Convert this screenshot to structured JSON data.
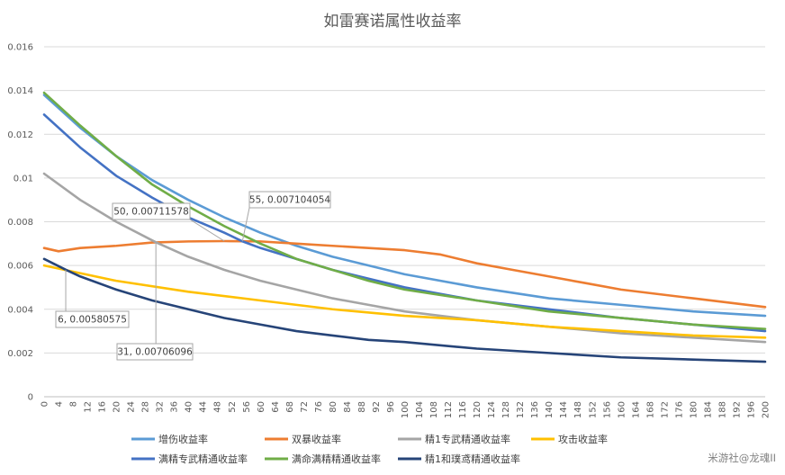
{
  "chart_data": {
    "type": "line",
    "title": "如雷赛诺属性收益率",
    "xlabel": "",
    "ylabel": "",
    "xlim": [
      0,
      200
    ],
    "ylim": [
      0,
      0.016
    ],
    "yticks": [
      "0",
      "0.002",
      "0.004",
      "0.006",
      "0.008",
      "0.01",
      "0.012",
      "0.014",
      "0.016"
    ],
    "xtick_step": 4,
    "grid": true,
    "legend_position": "bottom",
    "series": [
      {
        "name": "增伤收益率",
        "color": "#5B9BD5",
        "points": [
          [
            0,
            0.0138
          ],
          [
            10,
            0.0123
          ],
          [
            20,
            0.011
          ],
          [
            30,
            0.0099
          ],
          [
            40,
            0.009
          ],
          [
            50,
            0.0082
          ],
          [
            60,
            0.0075
          ],
          [
            70,
            0.0069
          ],
          [
            80,
            0.0064
          ],
          [
            90,
            0.006
          ],
          [
            100,
            0.0056
          ],
          [
            120,
            0.005
          ],
          [
            140,
            0.0045
          ],
          [
            160,
            0.0042
          ],
          [
            180,
            0.0039
          ],
          [
            200,
            0.0037
          ]
        ]
      },
      {
        "name": "双暴收益率",
        "color": "#ED7D31",
        "points": [
          [
            0,
            0.0068
          ],
          [
            4,
            0.00665
          ],
          [
            10,
            0.0068
          ],
          [
            20,
            0.0069
          ],
          [
            30,
            0.00705
          ],
          [
            40,
            0.0071
          ],
          [
            50,
            0.00711578
          ],
          [
            60,
            0.0071
          ],
          [
            70,
            0.007
          ],
          [
            80,
            0.0069
          ],
          [
            90,
            0.0068
          ],
          [
            100,
            0.0067
          ],
          [
            110,
            0.0065
          ],
          [
            120,
            0.0061
          ],
          [
            130,
            0.0058
          ],
          [
            140,
            0.0055
          ],
          [
            150,
            0.0052
          ],
          [
            160,
            0.0049
          ],
          [
            170,
            0.0047
          ],
          [
            180,
            0.0045
          ],
          [
            190,
            0.0043
          ],
          [
            200,
            0.0041
          ]
        ]
      },
      {
        "name": "精1专武精通收益率",
        "color": "#A5A5A5",
        "points": [
          [
            0,
            0.0102
          ],
          [
            10,
            0.009
          ],
          [
            20,
            0.008
          ],
          [
            31,
            0.00706096
          ],
          [
            40,
            0.0064
          ],
          [
            50,
            0.0058
          ],
          [
            60,
            0.0053
          ],
          [
            70,
            0.0049
          ],
          [
            80,
            0.0045
          ],
          [
            90,
            0.0042
          ],
          [
            100,
            0.0039
          ],
          [
            120,
            0.0035
          ],
          [
            140,
            0.0032
          ],
          [
            160,
            0.0029
          ],
          [
            180,
            0.0027
          ],
          [
            200,
            0.0025
          ]
        ]
      },
      {
        "name": "攻击收益率",
        "color": "#FFC000",
        "points": [
          [
            0,
            0.006
          ],
          [
            20,
            0.0053
          ],
          [
            40,
            0.0048
          ],
          [
            60,
            0.0044
          ],
          [
            80,
            0.004
          ],
          [
            100,
            0.0037
          ],
          [
            120,
            0.0035
          ],
          [
            140,
            0.0032
          ],
          [
            160,
            0.003
          ],
          [
            180,
            0.0028
          ],
          [
            200,
            0.0027
          ]
        ]
      },
      {
        "name": "满精专武精通收益率",
        "color": "#4472C4",
        "points": [
          [
            0,
            0.0129
          ],
          [
            10,
            0.0114
          ],
          [
            20,
            0.0101
          ],
          [
            30,
            0.0091
          ],
          [
            40,
            0.0082
          ],
          [
            50,
            0.0075
          ],
          [
            55,
            0.007104054
          ],
          [
            60,
            0.0068
          ],
          [
            70,
            0.0063
          ],
          [
            80,
            0.0058
          ],
          [
            90,
            0.0054
          ],
          [
            100,
            0.005
          ],
          [
            120,
            0.0044
          ],
          [
            140,
            0.004
          ],
          [
            160,
            0.0036
          ],
          [
            180,
            0.0033
          ],
          [
            200,
            0.003
          ]
        ]
      },
      {
        "name": "满命满精精通收益率",
        "color": "#70AD47",
        "points": [
          [
            0,
            0.0139
          ],
          [
            10,
            0.0124
          ],
          [
            20,
            0.011
          ],
          [
            30,
            0.0097
          ],
          [
            40,
            0.0087
          ],
          [
            50,
            0.0078
          ],
          [
            60,
            0.007
          ],
          [
            70,
            0.0063
          ],
          [
            80,
            0.0058
          ],
          [
            90,
            0.0053
          ],
          [
            100,
            0.0049
          ],
          [
            120,
            0.0044
          ],
          [
            140,
            0.0039
          ],
          [
            160,
            0.0036
          ],
          [
            180,
            0.0033
          ],
          [
            200,
            0.0031
          ]
        ]
      },
      {
        "name": "精1和璞鸢精通收益率",
        "color": "#264478",
        "points": [
          [
            0,
            0.0063
          ],
          [
            6,
            0.00580575
          ],
          [
            10,
            0.0055
          ],
          [
            20,
            0.0049
          ],
          [
            30,
            0.0044
          ],
          [
            40,
            0.004
          ],
          [
            50,
            0.0036
          ],
          [
            60,
            0.0033
          ],
          [
            70,
            0.003
          ],
          [
            80,
            0.0028
          ],
          [
            90,
            0.0026
          ],
          [
            100,
            0.0025
          ],
          [
            120,
            0.0022
          ],
          [
            140,
            0.002
          ],
          [
            160,
            0.0018
          ],
          [
            180,
            0.0017
          ],
          [
            200,
            0.0016
          ]
        ]
      }
    ],
    "annotations": [
      {
        "text": "50, 0.00711578",
        "x": 50,
        "y": 0.00711578
      },
      {
        "text": "55, 0.007104054",
        "x": 55,
        "y": 0.007104054
      },
      {
        "text": "6, 0.00580575",
        "x": 6,
        "y": 0.00580575
      },
      {
        "text": "31, 0.00706096",
        "x": 31,
        "y": 0.00706096
      }
    ]
  },
  "watermark": "米游社@龙魂II"
}
